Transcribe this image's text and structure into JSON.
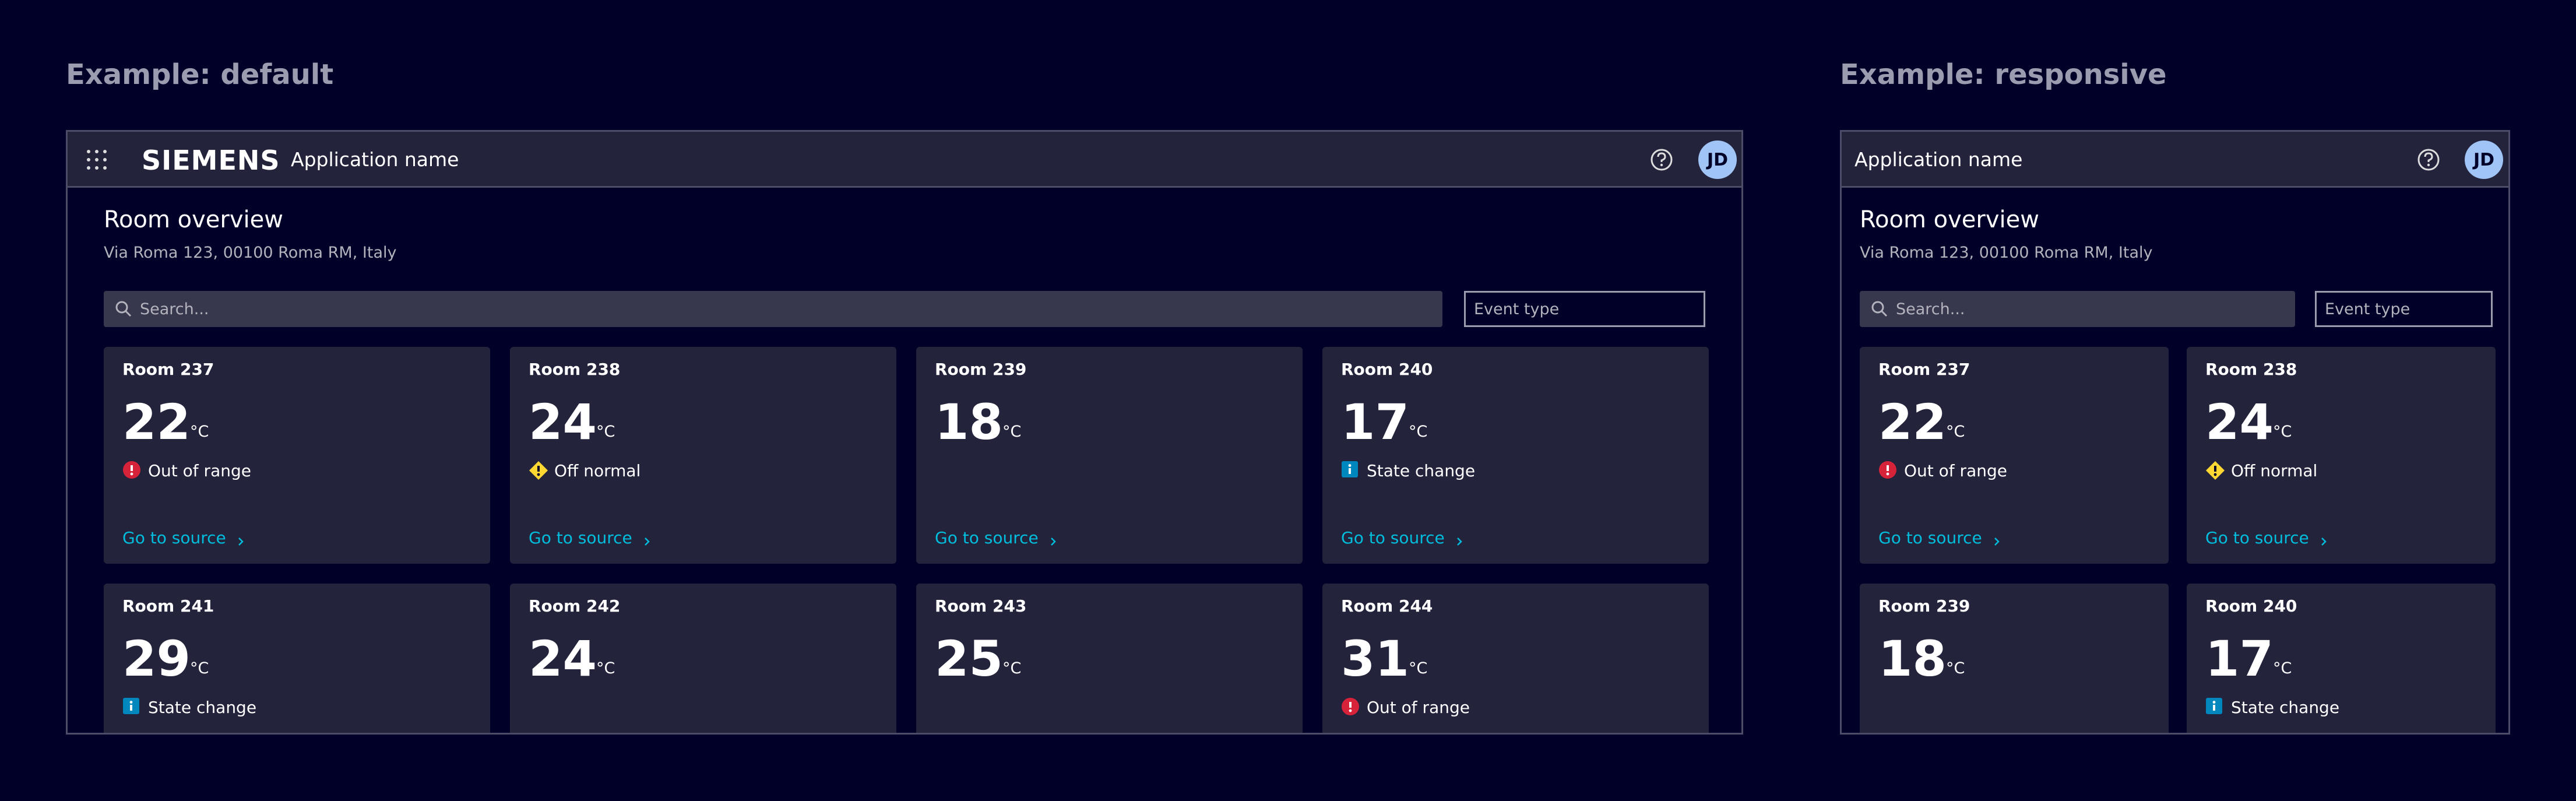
{
  "examples": [
    {
      "label": "Example:  default",
      "header": {
        "brand": "SIEMENS",
        "app_name": "Application name",
        "avatar": "JD"
      },
      "page": {
        "title": "Room overview",
        "address": "Via Roma 123, 00100 Roma RM, Italy",
        "search_placeholder": "Search...",
        "filter_placeholder": "Event type"
      },
      "cards": [
        {
          "room": "Room 237",
          "temperature": 22,
          "unit": "°C",
          "status": "Out of range",
          "icon": "error",
          "link": "Go to source"
        },
        {
          "room": "Room 238",
          "temperature": 24,
          "unit": "°C",
          "status": "Off normal",
          "icon": "warning",
          "link": "Go to source"
        },
        {
          "room": "Room 239",
          "temperature": 18,
          "unit": "°C",
          "link": "Go to source"
        },
        {
          "room": "Room 240",
          "temperature": 17,
          "unit": "°C",
          "status": "State change",
          "icon": "info",
          "link": "Go to source"
        },
        {
          "room": "Room 241",
          "temperature": 29,
          "unit": "°C",
          "status": "State change",
          "icon": "info"
        },
        {
          "room": "Room 242",
          "temperature": 24,
          "unit": "°C"
        },
        {
          "room": "Room 243",
          "temperature": 25,
          "unit": "°C"
        },
        {
          "room": "Room 244",
          "temperature": 31,
          "unit": "°C",
          "status": "Out of range",
          "icon": "error"
        }
      ]
    },
    {
      "label": "Example:  responsive",
      "header": {
        "app_name": "Application name",
        "avatar": "JD"
      },
      "page": {
        "title": "Room overview",
        "address": "Via Roma 123, 00100 Roma RM, Italy",
        "search_placeholder": "Search...",
        "filter_placeholder": "Event type"
      },
      "cards": [
        {
          "room": "Room 237",
          "temperature": 22,
          "unit": "°C",
          "status": "Out of range",
          "icon": "error",
          "link": "Go to source"
        },
        {
          "room": "Room 238",
          "temperature": 24,
          "unit": "°C",
          "status": "Off normal",
          "icon": "warning",
          "link": "Go to source"
        },
        {
          "room": "Room 239",
          "temperature": 18,
          "unit": "°C"
        },
        {
          "room": "Room 240",
          "temperature": 17,
          "unit": "°C",
          "status": "State change",
          "icon": "info"
        }
      ]
    }
  ]
}
